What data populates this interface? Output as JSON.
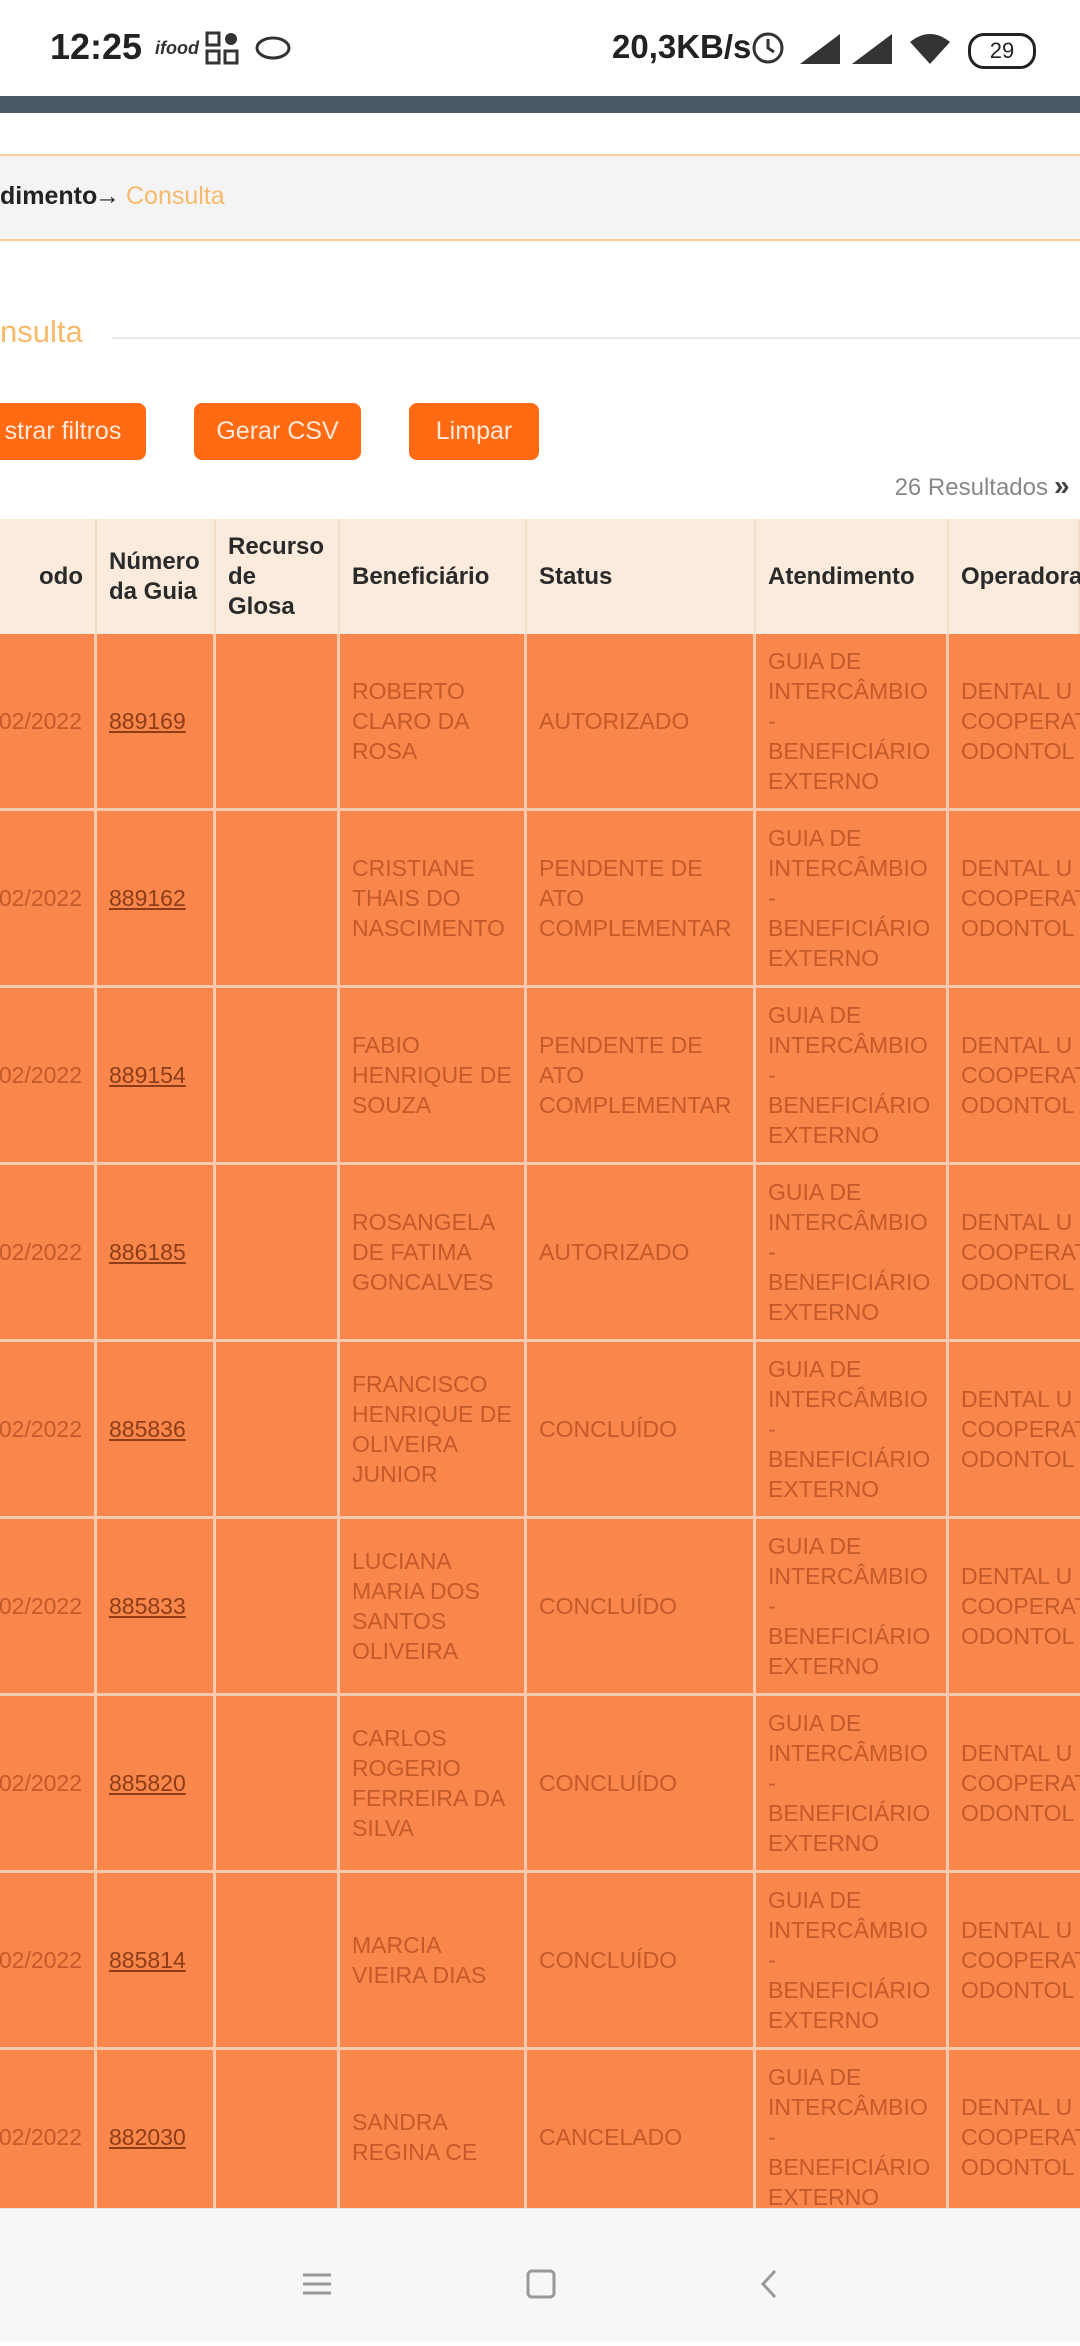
{
  "status_bar": {
    "time": "12:25",
    "network_speed": "20,3KB/s",
    "battery": "29"
  },
  "breadcrumb": {
    "parent": "dimento",
    "arrow": "→",
    "current": "Consulta"
  },
  "section_title": "nsulta",
  "buttons": [
    "strar filtros",
    "Gerar CSV",
    "Limpar"
  ],
  "results": "26 Resultados",
  "table": {
    "headers": [
      "odo",
      "Número da Guia",
      "Recurso de Glosa",
      "Beneficiário",
      "Status",
      "Atendimento",
      "Operadora"
    ],
    "rows": [
      {
        "date": "02/2022",
        "guia": "889169",
        "beneficiario": "ROBERTO CLARO DA ROSA",
        "status": "AUTORIZADO",
        "atendimento": "GUIA DE INTERCÂMBIO - BENEFICIÁRIO EXTERNO",
        "operadora": "DENTAL U COOPERAT ODONTOL"
      },
      {
        "date": "02/2022",
        "guia": "889162",
        "beneficiario": "CRISTIANE THAIS DO NASCIMENTO",
        "status": "PENDENTE DE ATO COMPLEMENTAR",
        "atendimento": "GUIA DE INTERCÂMBIO - BENEFICIÁRIO EXTERNO",
        "operadora": "DENTAL U COOPERAT ODONTOL"
      },
      {
        "date": "02/2022",
        "guia": "889154",
        "beneficiario": "FABIO HENRIQUE DE SOUZA",
        "status": "PENDENTE DE ATO COMPLEMENTAR",
        "atendimento": "GUIA DE INTERCÂMBIO - BENEFICIÁRIO EXTERNO",
        "operadora": "DENTAL U COOPERAT ODONTOL"
      },
      {
        "date": "02/2022",
        "guia": "886185",
        "beneficiario": "ROSANGELA DE FATIMA GONCALVES",
        "status": "AUTORIZADO",
        "atendimento": "GUIA DE INTERCÂMBIO - BENEFICIÁRIO EXTERNO",
        "operadora": "DENTAL U COOPERAT ODONTOL"
      },
      {
        "date": "02/2022",
        "guia": "885836",
        "beneficiario": "FRANCISCO HENRIQUE DE OLIVEIRA JUNIOR",
        "status": "CONCLUÍDO",
        "atendimento": "GUIA DE INTERCÂMBIO - BENEFICIÁRIO EXTERNO",
        "operadora": "DENTAL U COOPERAT ODONTOL"
      },
      {
        "date": "02/2022",
        "guia": "885833",
        "beneficiario": "LUCIANA MARIA DOS SANTOS OLIVEIRA",
        "status": "CONCLUÍDO",
        "atendimento": "GUIA DE INTERCÂMBIO - BENEFICIÁRIO EXTERNO",
        "operadora": "DENTAL U COOPERAT ODONTOL"
      },
      {
        "date": "02/2022",
        "guia": "885820",
        "beneficiario": "CARLOS ROGERIO FERREIRA DA SILVA",
        "status": "CONCLUÍDO",
        "atendimento": "GUIA DE INTERCÂMBIO - BENEFICIÁRIO EXTERNO",
        "operadora": "DENTAL U COOPERAT ODONTOL"
      },
      {
        "date": "02/2022",
        "guia": "885814",
        "beneficiario": "MARCIA VIEIRA DIAS",
        "status": "CONCLUÍDO",
        "atendimento": "GUIA DE INTERCÂMBIO - BENEFICIÁRIO EXTERNO",
        "operadora": "DENTAL U COOPERAT ODONTOL"
      },
      {
        "date": "02/2022",
        "guia": "882030",
        "beneficiario": "SANDRA REGINA CE",
        "status": "CANCELADO",
        "atendimento": "GUIA DE INTERCÂMBIO - BENEFICIÁRIO EXTERNO",
        "operadora": "DENTAL U COOPERAT ODONTOL"
      }
    ]
  }
}
